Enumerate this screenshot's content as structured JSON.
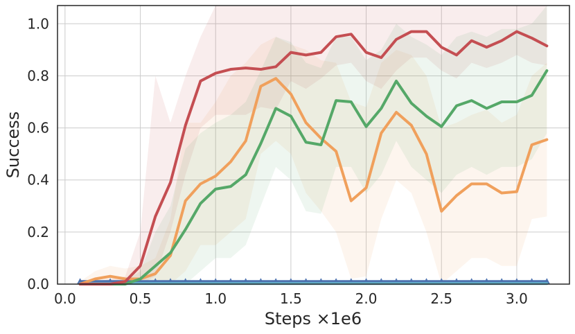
{
  "chart_data": {
    "type": "line",
    "title": "",
    "xlabel": "Steps ×1e6",
    "ylabel": "Success",
    "xlim": [
      -0.05,
      3.35
    ],
    "ylim": [
      0.0,
      1.07
    ],
    "xticks": [
      0.0,
      0.5,
      1.0,
      1.5,
      2.0,
      2.5,
      3.0
    ],
    "xtick_labels": [
      "0.0",
      "0.5",
      "1.0",
      "1.5",
      "2.0",
      "2.5",
      "3.0"
    ],
    "yticks": [
      0.0,
      0.2,
      0.4,
      0.6,
      0.8,
      1.0
    ],
    "ytick_labels": [
      "0.0",
      "0.2",
      "0.4",
      "0.6",
      "0.8",
      "1.0"
    ],
    "grid": true,
    "x": [
      0.1,
      0.2,
      0.3,
      0.4,
      0.5,
      0.6,
      0.7,
      0.8,
      0.9,
      1.0,
      1.1,
      1.2,
      1.3,
      1.4,
      1.5,
      1.6,
      1.7,
      1.8,
      1.9,
      2.0,
      2.1,
      2.2,
      2.3,
      2.4,
      2.5,
      2.6,
      2.7,
      2.8,
      2.9,
      3.0,
      3.1,
      3.2
    ],
    "series": [
      {
        "color": "#c44e52",
        "values": [
          0.0,
          0.0,
          0.0,
          0.01,
          0.07,
          0.26,
          0.39,
          0.61,
          0.78,
          0.81,
          0.825,
          0.83,
          0.825,
          0.835,
          0.89,
          0.88,
          0.89,
          0.95,
          0.96,
          0.89,
          0.87,
          0.94,
          0.97,
          0.97,
          0.91,
          0.88,
          0.935,
          0.91,
          0.935,
          0.97,
          0.945,
          0.915
        ],
        "upper": [
          0.01,
          0.01,
          0.02,
          0.03,
          0.2,
          0.8,
          0.62,
          0.8,
          0.95,
          1.07,
          1.07,
          1.07,
          1.07,
          1.07,
          1.07,
          1.07,
          1.07,
          1.07,
          1.07,
          1.07,
          1.07,
          1.07,
          1.07,
          1.07,
          1.07,
          1.07,
          1.07,
          1.07,
          1.07,
          1.07,
          1.07,
          1.07
        ],
        "lower": [
          0.0,
          0.0,
          0.0,
          0.0,
          0.0,
          0.03,
          0.2,
          0.42,
          0.6,
          0.65,
          0.65,
          0.65,
          0.68,
          0.67,
          0.78,
          0.75,
          0.79,
          0.84,
          0.85,
          0.78,
          0.75,
          0.82,
          0.87,
          0.87,
          0.82,
          0.79,
          0.85,
          0.83,
          0.85,
          0.88,
          0.85,
          0.84
        ]
      },
      {
        "color": "#f0a05c",
        "values": [
          0.0,
          0.02,
          0.03,
          0.02,
          0.02,
          0.04,
          0.11,
          0.32,
          0.385,
          0.415,
          0.47,
          0.55,
          0.76,
          0.79,
          0.73,
          0.62,
          0.56,
          0.51,
          0.32,
          0.37,
          0.58,
          0.66,
          0.61,
          0.5,
          0.28,
          0.34,
          0.385,
          0.385,
          0.35,
          0.355,
          0.535,
          0.555
        ],
        "upper": [
          0.01,
          0.05,
          0.07,
          0.06,
          0.07,
          0.1,
          0.25,
          0.62,
          0.62,
          0.7,
          0.8,
          0.85,
          0.92,
          0.95,
          0.92,
          0.9,
          0.86,
          0.85,
          0.7,
          0.68,
          0.85,
          0.9,
          0.88,
          0.8,
          0.6,
          0.62,
          0.65,
          0.67,
          0.62,
          0.65,
          0.8,
          0.85
        ],
        "lower": [
          0.0,
          0.0,
          0.0,
          0.0,
          0.0,
          0.0,
          0.0,
          0.05,
          0.15,
          0.15,
          0.2,
          0.25,
          0.5,
          0.55,
          0.5,
          0.35,
          0.28,
          0.2,
          0.02,
          0.03,
          0.25,
          0.4,
          0.35,
          0.2,
          0.0,
          0.05,
          0.1,
          0.1,
          0.07,
          0.07,
          0.25,
          0.26
        ]
      },
      {
        "color": "#55a868",
        "values": [
          0.0,
          0.0,
          0.0,
          0.0,
          0.02,
          0.07,
          0.12,
          0.21,
          0.31,
          0.365,
          0.375,
          0.42,
          0.54,
          0.675,
          0.645,
          0.545,
          0.535,
          0.705,
          0.7,
          0.605,
          0.675,
          0.78,
          0.695,
          0.645,
          0.605,
          0.685,
          0.705,
          0.675,
          0.7,
          0.7,
          0.725,
          0.82
        ],
        "upper": [
          0.01,
          0.01,
          0.01,
          0.01,
          0.05,
          0.2,
          0.3,
          0.52,
          0.58,
          0.62,
          0.65,
          0.7,
          0.82,
          0.95,
          0.93,
          0.85,
          0.83,
          0.95,
          0.95,
          0.86,
          0.9,
          1.0,
          0.95,
          0.92,
          0.88,
          0.95,
          0.97,
          0.95,
          0.98,
          0.98,
          1.0,
          1.07
        ],
        "lower": [
          0.0,
          0.0,
          0.0,
          0.0,
          0.0,
          0.0,
          0.0,
          0.0,
          0.05,
          0.1,
          0.1,
          0.15,
          0.3,
          0.45,
          0.4,
          0.28,
          0.27,
          0.45,
          0.45,
          0.35,
          0.42,
          0.55,
          0.45,
          0.4,
          0.35,
          0.42,
          0.45,
          0.42,
          0.45,
          0.45,
          0.48,
          0.58
        ]
      },
      {
        "color": "#4c72b0",
        "marker": "triangle",
        "values": [
          0.01,
          0.01,
          0.01,
          0.01,
          0.01,
          0.01,
          0.01,
          0.01,
          0.01,
          0.01,
          0.01,
          0.01,
          0.01,
          0.01,
          0.01,
          0.01,
          0.01,
          0.01,
          0.01,
          0.01,
          0.01,
          0.01,
          0.01,
          0.01,
          0.01,
          0.01,
          0.01,
          0.01,
          0.01,
          0.01,
          0.01,
          0.01
        ]
      },
      {
        "color": "#64b5cd",
        "values": [
          0.002,
          0.002,
          0.002,
          0.002,
          0.002,
          0.002,
          0.002,
          0.002,
          0.002,
          0.002,
          0.002,
          0.002,
          0.002,
          0.002,
          0.002,
          0.002,
          0.002,
          0.002,
          0.002,
          0.002,
          0.002,
          0.002,
          0.002,
          0.002,
          0.002,
          0.002,
          0.002,
          0.002,
          0.002,
          0.002,
          0.002,
          0.002
        ]
      }
    ]
  }
}
